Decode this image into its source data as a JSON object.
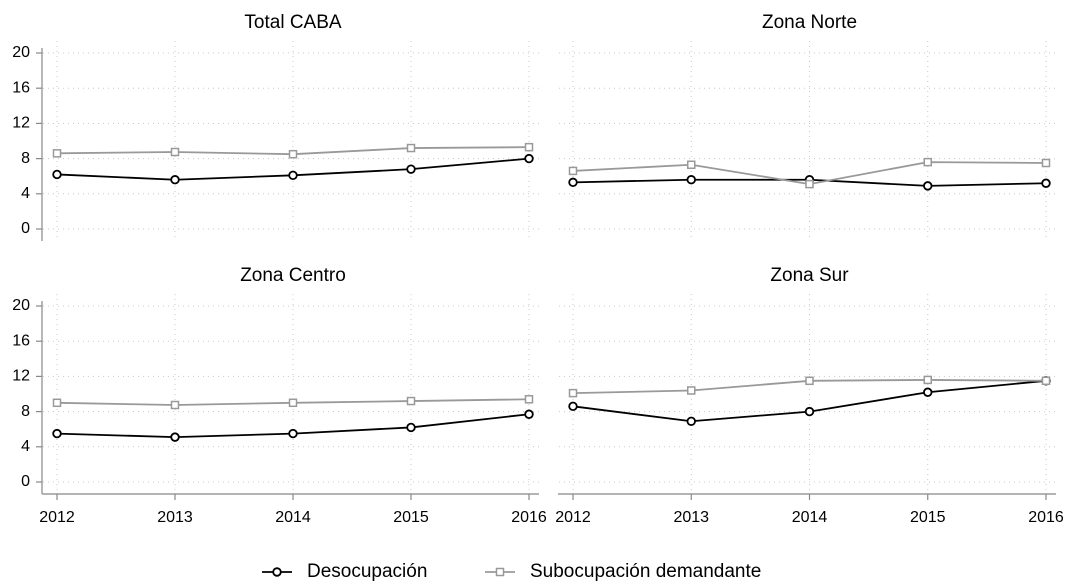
{
  "chart_data": [
    {
      "type": "line",
      "title": "Total CABA",
      "x": [
        2012,
        2013,
        2014,
        2015,
        2016
      ],
      "xlim": [
        2012,
        2016
      ],
      "xticks": [
        2012,
        2013,
        2014,
        2015,
        2016
      ],
      "ylim": [
        0,
        20
      ],
      "yticks": [
        0,
        4,
        8,
        12,
        16,
        20
      ],
      "grid": true,
      "series": [
        {
          "name": "Desocupación",
          "color": "#000000",
          "marker": "circle",
          "values": [
            6.2,
            5.6,
            6.1,
            6.8,
            8.0
          ]
        },
        {
          "name": "Subocupación demandante",
          "color": "#999999",
          "marker": "square",
          "values": [
            8.6,
            8.75,
            8.5,
            9.2,
            9.3
          ]
        }
      ]
    },
    {
      "type": "line",
      "title": "Zona Norte",
      "x": [
        2012,
        2013,
        2014,
        2015,
        2016
      ],
      "xlim": [
        2012,
        2016
      ],
      "xticks": [
        2012,
        2013,
        2014,
        2015,
        2016
      ],
      "ylim": [
        0,
        20
      ],
      "yticks": [
        0,
        4,
        8,
        12,
        16,
        20
      ],
      "grid": true,
      "series": [
        {
          "name": "Desocupación",
          "color": "#000000",
          "marker": "circle",
          "values": [
            5.3,
            5.6,
            5.6,
            4.9,
            5.2
          ]
        },
        {
          "name": "Subocupación demandante",
          "color": "#999999",
          "marker": "square",
          "values": [
            6.6,
            7.3,
            5.1,
            7.6,
            7.5
          ]
        }
      ]
    },
    {
      "type": "line",
      "title": "Zona Centro",
      "x": [
        2012,
        2013,
        2014,
        2015,
        2016
      ],
      "xlim": [
        2012,
        2016
      ],
      "xticks": [
        2012,
        2013,
        2014,
        2015,
        2016
      ],
      "ylim": [
        0,
        20
      ],
      "yticks": [
        0,
        4,
        8,
        12,
        16,
        20
      ],
      "grid": true,
      "series": [
        {
          "name": "Desocupación",
          "color": "#000000",
          "marker": "circle",
          "values": [
            5.5,
            5.1,
            5.5,
            6.2,
            7.7
          ]
        },
        {
          "name": "Subocupación demandante",
          "color": "#999999",
          "marker": "square",
          "values": [
            9.0,
            8.75,
            9.0,
            9.2,
            9.4
          ]
        }
      ]
    },
    {
      "type": "line",
      "title": "Zona Sur",
      "x": [
        2012,
        2013,
        2014,
        2015,
        2016
      ],
      "xlim": [
        2012,
        2016
      ],
      "xticks": [
        2012,
        2013,
        2014,
        2015,
        2016
      ],
      "ylim": [
        0,
        20
      ],
      "yticks": [
        0,
        4,
        8,
        12,
        16,
        20
      ],
      "grid": true,
      "series": [
        {
          "name": "Desocupación",
          "color": "#000000",
          "marker": "circle",
          "values": [
            8.6,
            6.9,
            8.0,
            10.2,
            11.5
          ]
        },
        {
          "name": "Subocupación demandante",
          "color": "#999999",
          "marker": "square",
          "values": [
            10.1,
            10.4,
            11.5,
            11.6,
            11.5
          ]
        }
      ]
    }
  ]
}
